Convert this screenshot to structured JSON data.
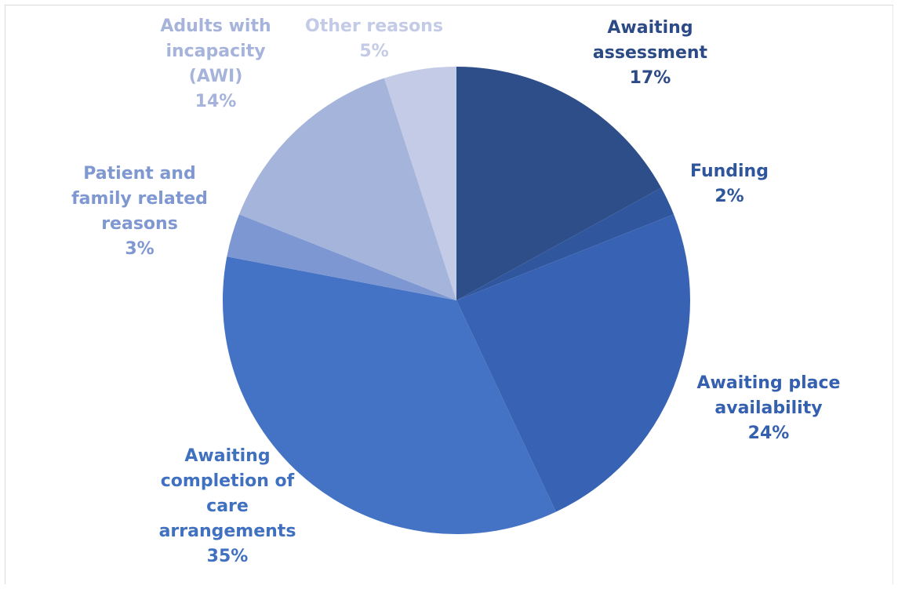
{
  "chart_data": {
    "type": "pie",
    "start_angle_deg": 0,
    "direction": "clockwise",
    "slices": [
      {
        "label_lines": [
          "Awaiting",
          "assessment"
        ],
        "value": 17,
        "value_label": "17%",
        "color": "#2e4e8a",
        "label_color": "#2c4a85"
      },
      {
        "label_lines": [
          "Funding"
        ],
        "value": 2,
        "value_label": "2%",
        "color": "#30579d",
        "label_color": "#2f559a"
      },
      {
        "label_lines": [
          "Awaiting place",
          "availability"
        ],
        "value": 24,
        "value_label": "24%",
        "color": "#3863b4",
        "label_color": "#3560b0"
      },
      {
        "label_lines": [
          "Awaiting",
          "completion of",
          "care",
          "arrangements"
        ],
        "value": 35,
        "value_label": "35%",
        "color": "#4472c4",
        "label_color": "#4070c0"
      },
      {
        "label_lines": [
          "Patient and",
          "family related",
          "reasons"
        ],
        "value": 3,
        "value_label": "3%",
        "color": "#7d97d3",
        "label_color": "#7f98d2"
      },
      {
        "label_lines": [
          "Adults with",
          "incapacity",
          "(AWI)"
        ],
        "value": 14,
        "value_label": "14%",
        "color": "#a5b4db",
        "label_color": "#a6b4db"
      },
      {
        "label_lines": [
          "Other reasons"
        ],
        "value": 5,
        "value_label": "5%",
        "color": "#c3cbe6",
        "label_color": "#c3cbe6"
      }
    ]
  }
}
